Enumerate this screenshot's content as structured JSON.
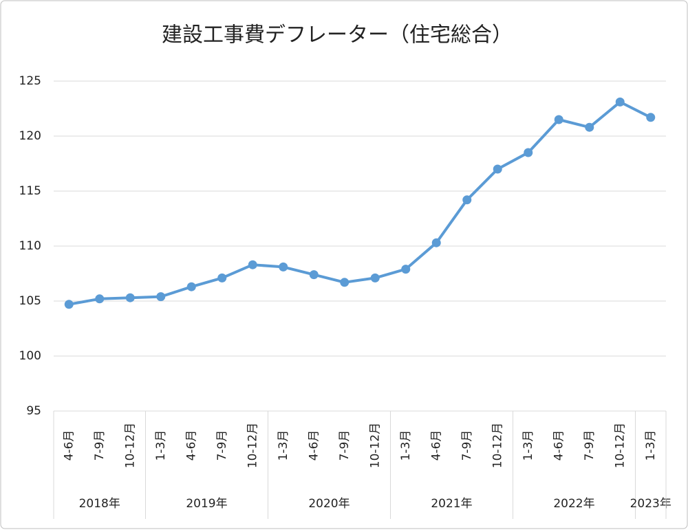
{
  "chart_data": {
    "type": "line",
    "title": "建設工事費デフレーター（住宅総合）",
    "groups": [
      {
        "label": "2018年",
        "categories": [
          "4-6月",
          "7-9月",
          "10-12月"
        ]
      },
      {
        "label": "2019年",
        "categories": [
          "1-3月",
          "4-6月",
          "7-9月",
          "10-12月"
        ]
      },
      {
        "label": "2020年",
        "categories": [
          "1-3月",
          "4-6月",
          "7-9月",
          "10-12月"
        ]
      },
      {
        "label": "2021年",
        "categories": [
          "1-3月",
          "4-6月",
          "7-9月",
          "10-12月"
        ]
      },
      {
        "label": "2022年",
        "categories": [
          "1-3月",
          "4-6月",
          "7-9月",
          "10-12月"
        ]
      },
      {
        "label": "2023年",
        "categories": [
          "1-3月"
        ]
      }
    ],
    "values": [
      104.7,
      105.2,
      105.3,
      105.4,
      106.3,
      107.1,
      108.3,
      108.1,
      107.4,
      106.7,
      107.1,
      107.9,
      110.3,
      114.2,
      117.0,
      118.5,
      121.5,
      120.8,
      123.1,
      121.7
    ],
    "color": "#5b9bd5",
    "ylim": [
      95,
      125
    ],
    "yticks": [
      95,
      100,
      105,
      110,
      115,
      120,
      125
    ],
    "grid": true
  }
}
